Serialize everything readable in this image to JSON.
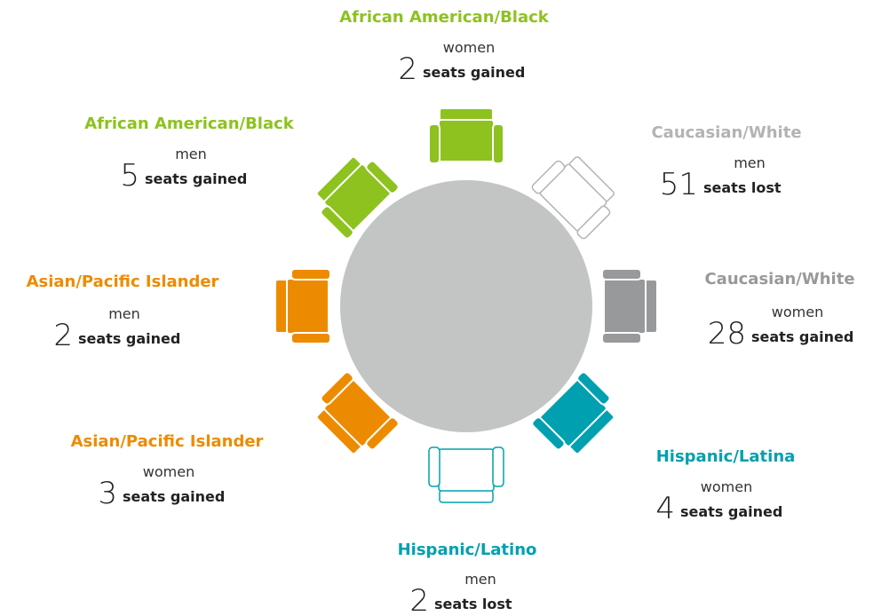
{
  "items": [
    {
      "label": "African American/Black",
      "gender": "women",
      "number": "2",
      "change": "seats gained",
      "color": "#8dc21f",
      "filled": true
    },
    {
      "label": "African American/Black",
      "gender": "men",
      "number": "5",
      "change": "seats gained",
      "color": "#8dc21f",
      "filled": true
    },
    {
      "label": "Caucasian/White",
      "gender": "men",
      "number": "51",
      "change": "seats lost",
      "color": "#b3b3b3",
      "filled": false
    },
    {
      "label": "Asian/Pacific Islander",
      "gender": "men",
      "number": "2",
      "change": "seats gained",
      "color": "#ed8b00",
      "filled": true
    },
    {
      "label": "Caucasian/White",
      "gender": "women",
      "number": "28",
      "change": "seats gained",
      "color": "#97999b",
      "filled": true
    },
    {
      "label": "Asian/Pacific Islander",
      "gender": "women",
      "number": "3",
      "change": "seats gained",
      "color": "#ed8b00",
      "filled": true
    },
    {
      "label": "Hispanic/Latina",
      "gender": "women",
      "number": "4",
      "change": "seats gained",
      "color": "#00a0b0",
      "filled": true
    },
    {
      "label": "Hispanic/Latino",
      "gender": "men",
      "number": "2",
      "change": "seats lost",
      "color": "#00a0b0",
      "filled": false
    }
  ]
}
